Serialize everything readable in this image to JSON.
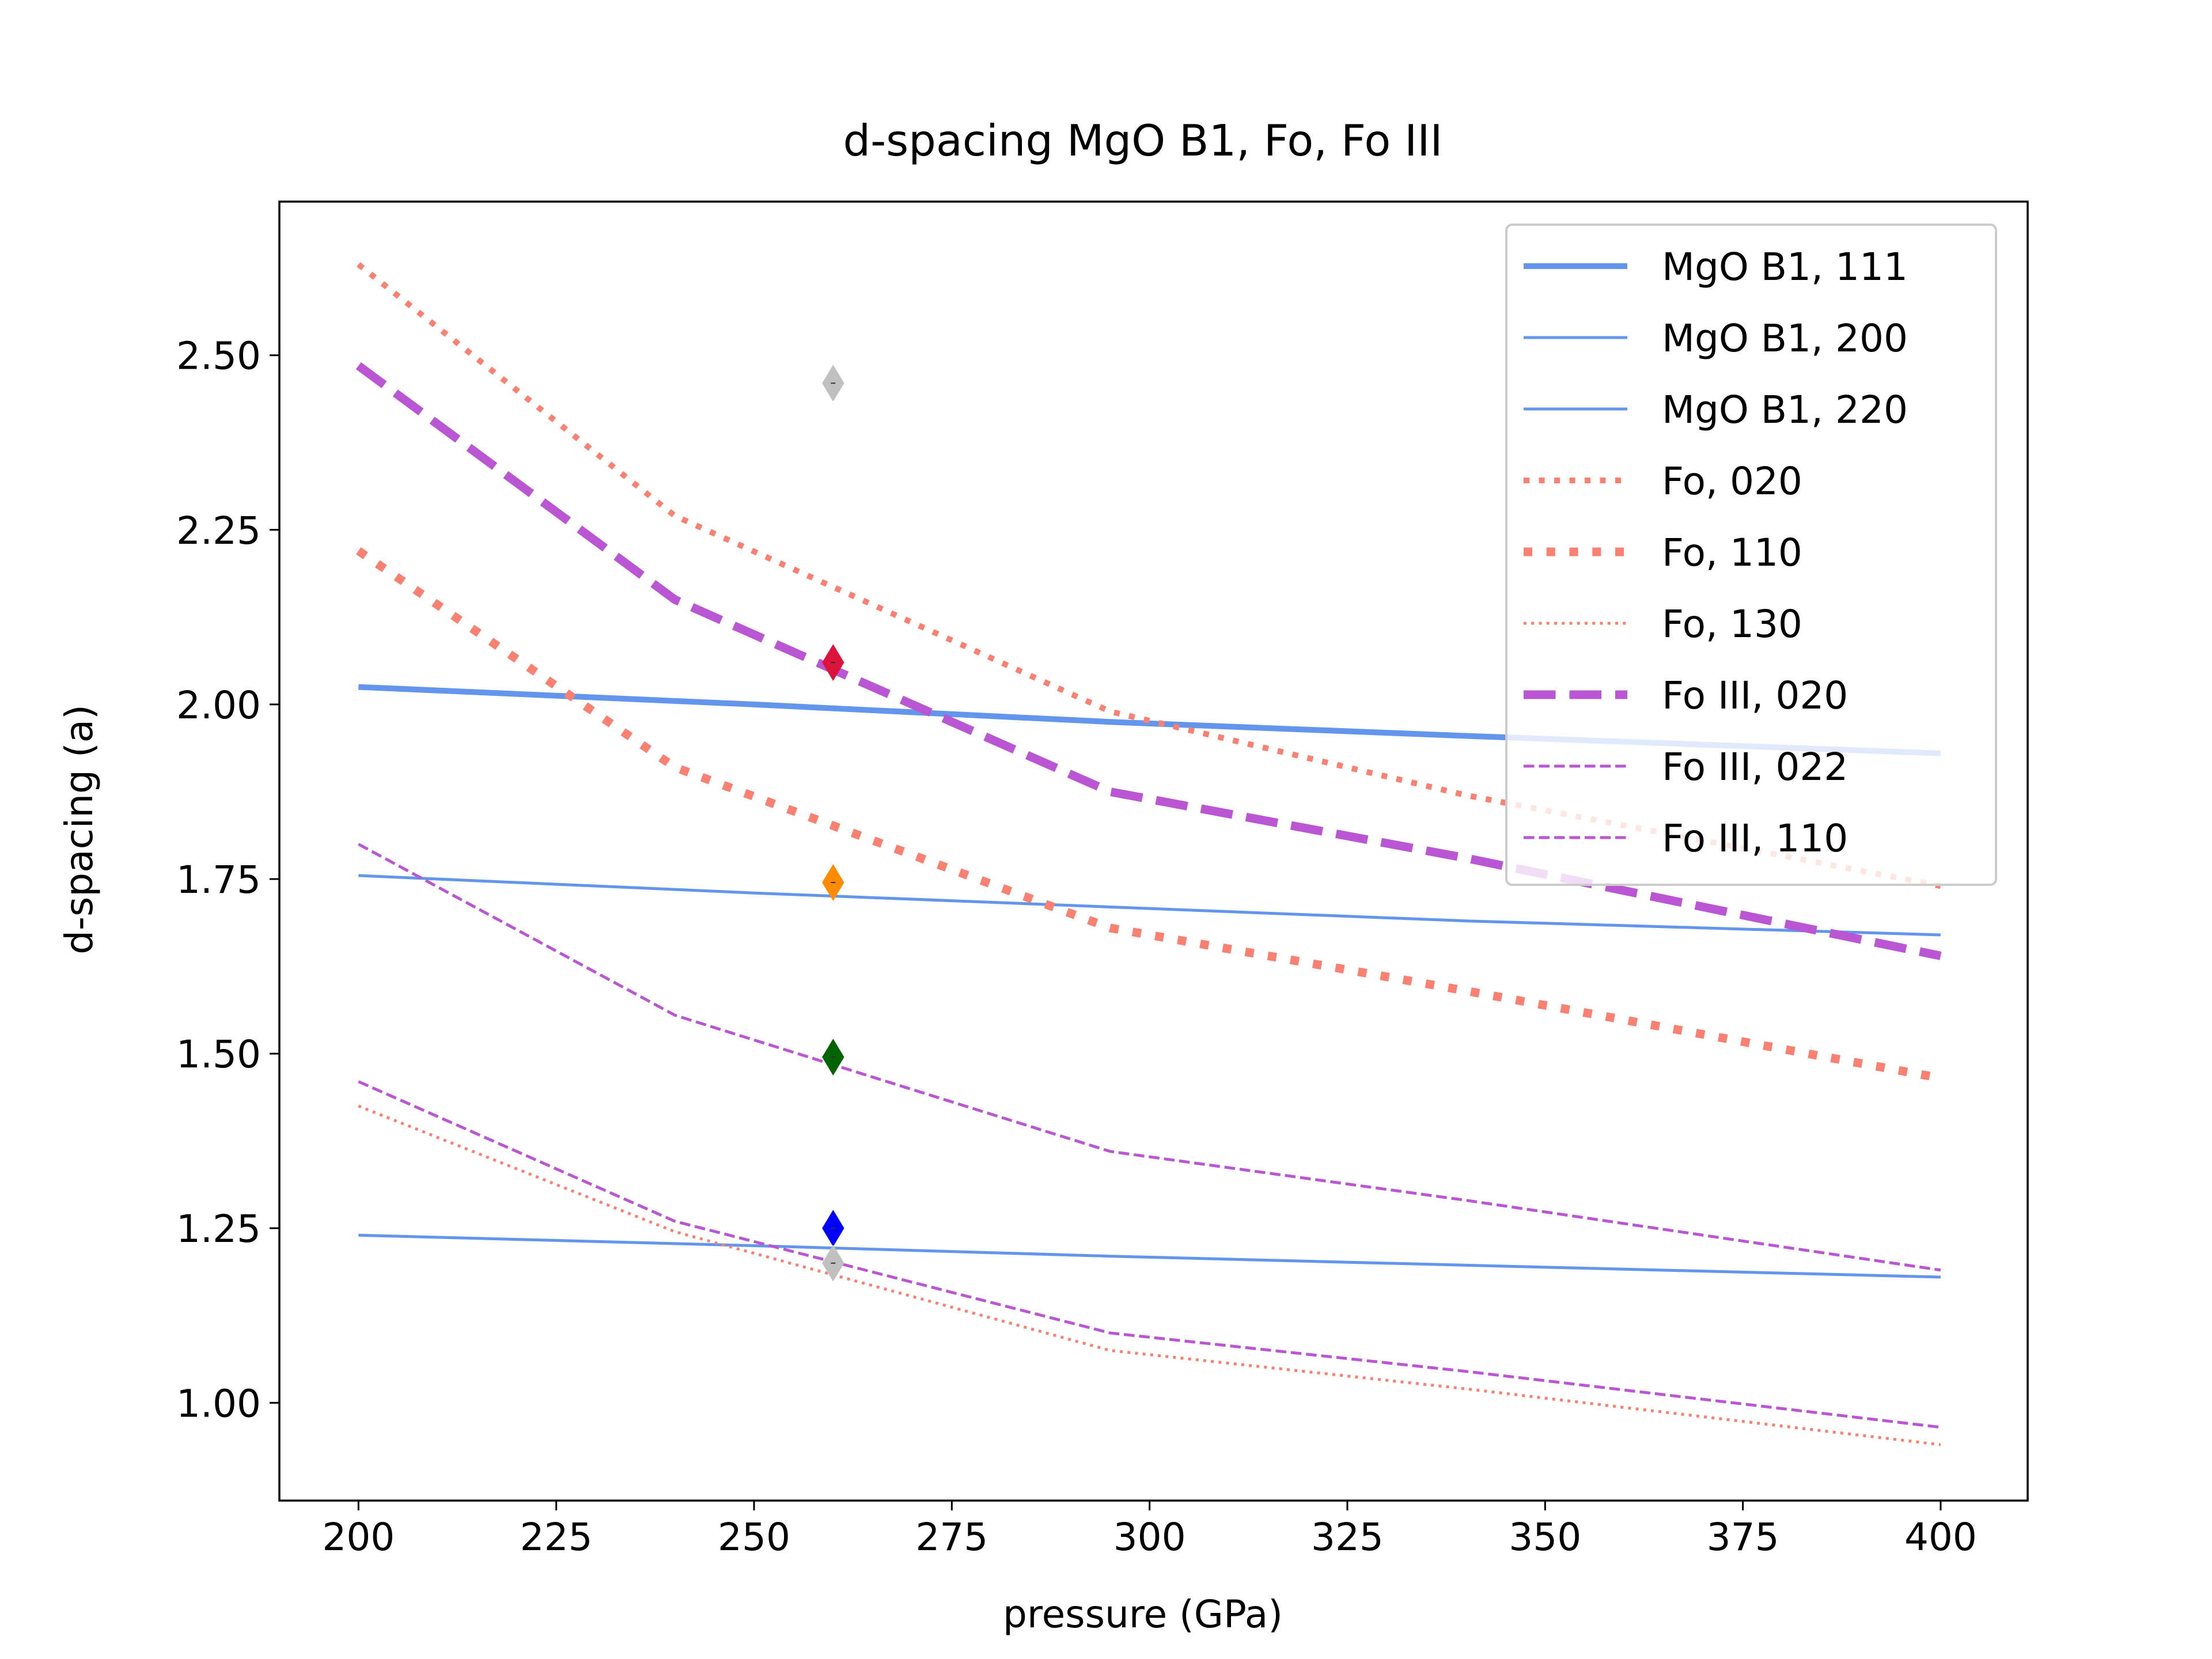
{
  "chart_data": {
    "type": "line",
    "title": "d-spacing MgO B1, Fo, Fo III",
    "xlabel": "pressure (GPa)",
    "ylabel": "d-spacing (a)",
    "xlim": [
      190,
      411
    ],
    "ylim": [
      0.86,
      2.72
    ],
    "xticks": [
      200,
      225,
      250,
      275,
      300,
      325,
      350,
      375,
      400
    ],
    "xtick_labels": [
      "200",
      "225",
      "250",
      "275",
      "300",
      "325",
      "350",
      "375",
      "400"
    ],
    "yticks": [
      1.0,
      1.25,
      1.5,
      1.75,
      2.0,
      2.25,
      2.5
    ],
    "ytick_labels": [
      "1.00",
      "1.25",
      "1.50",
      "1.75",
      "2.00",
      "2.25",
      "2.50"
    ],
    "grid": false,
    "legend_position": "top-right",
    "series": [
      {
        "name": "MgO B1, 111",
        "color": "#6495ed",
        "style": "solid-thick",
        "x": [
          200,
          250,
          295,
          340,
          400
        ],
        "y": [
          2.025,
          2.0,
          1.975,
          1.955,
          1.93
        ]
      },
      {
        "name": "MgO B1, 200",
        "color": "#6495ed",
        "style": "solid",
        "x": [
          200,
          250,
          295,
          340,
          400
        ],
        "y": [
          1.755,
          1.73,
          1.71,
          1.69,
          1.67
        ]
      },
      {
        "name": "MgO B1, 220",
        "color": "#6495ed",
        "style": "solid",
        "x": [
          200,
          250,
          295,
          340,
          400
        ],
        "y": [
          1.24,
          1.225,
          1.21,
          1.197,
          1.18
        ]
      },
      {
        "name": "Fo, 020",
        "color": "#fa8072",
        "style": "dotted",
        "x": [
          200,
          240,
          295,
          340,
          400
        ],
        "y": [
          2.63,
          2.27,
          1.99,
          1.87,
          1.74
        ]
      },
      {
        "name": "Fo, 110",
        "color": "#fa8072",
        "style": "dotted-thick",
        "x": [
          200,
          240,
          295,
          340,
          400
        ],
        "y": [
          2.22,
          1.91,
          1.68,
          1.59,
          1.465
        ]
      },
      {
        "name": "Fo, 130",
        "color": "#fa8072",
        "style": "dotted-thin",
        "x": [
          200,
          240,
          295,
          340,
          400
        ],
        "y": [
          1.425,
          1.245,
          1.075,
          1.02,
          0.94
        ]
      },
      {
        "name": "Fo III, 020",
        "color": "#ba55d3",
        "style": "dashed-thick",
        "x": [
          200,
          240,
          295,
          340,
          400
        ],
        "y": [
          2.485,
          2.15,
          1.875,
          1.78,
          1.64
        ]
      },
      {
        "name": "Fo III, 022",
        "color": "#ba55d3",
        "style": "dashed",
        "x": [
          200,
          240,
          295,
          340,
          400
        ],
        "y": [
          1.8,
          1.555,
          1.36,
          1.29,
          1.19
        ]
      },
      {
        "name": "Fo III, 110",
        "color": "#ba55d3",
        "style": "dashed",
        "x": [
          200,
          240,
          295,
          340,
          400
        ],
        "y": [
          1.46,
          1.26,
          1.1,
          1.045,
          0.965
        ]
      }
    ],
    "markers": [
      {
        "x": 260,
        "y": 2.46,
        "color": "#c0c0c0",
        "shape": "thin-diamond"
      },
      {
        "x": 260,
        "y": 2.06,
        "color": "#dc143c",
        "shape": "thin-diamond"
      },
      {
        "x": 260,
        "y": 1.745,
        "color": "#ff8c00",
        "shape": "thin-diamond"
      },
      {
        "x": 260,
        "y": 1.495,
        "color": "#006400",
        "shape": "thin-diamond"
      },
      {
        "x": 260,
        "y": 1.25,
        "color": "#0000ff",
        "shape": "thin-diamond"
      },
      {
        "x": 260,
        "y": 1.2,
        "color": "#c0c0c0",
        "shape": "thin-diamond"
      }
    ]
  }
}
